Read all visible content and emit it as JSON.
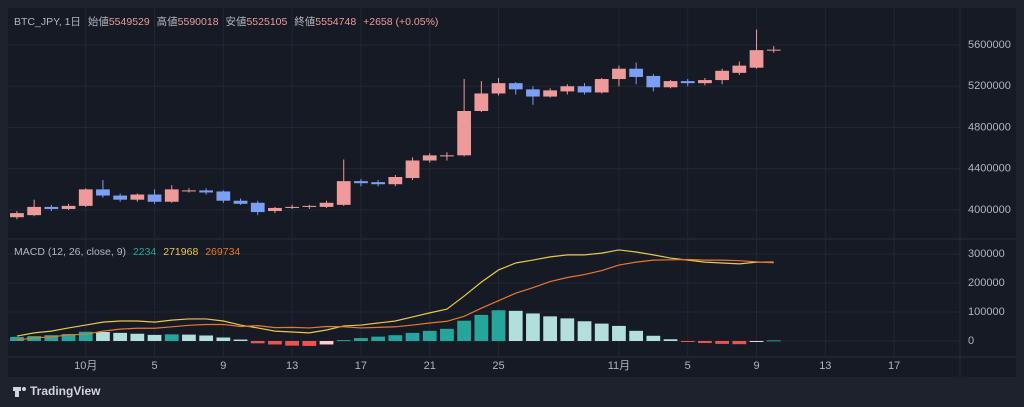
{
  "chart_data": [
    {
      "type": "candlestick",
      "title": "BTC_JPY, 1日",
      "header": {
        "open_label": "始値",
        "high_label": "高値",
        "low_label": "安値",
        "close_label": "終値",
        "change": "+2658 (+0.05%)"
      },
      "open": [
        3930000,
        3950000,
        4030000,
        4010000,
        4040000,
        4200000,
        4140000,
        4100000,
        4150000,
        4080000,
        4180000,
        4190000,
        4180000,
        4090000,
        4070000,
        3990000,
        4020000,
        4030000,
        4030000,
        4050000,
        4280000,
        4270000,
        4250000,
        4310000,
        4480000,
        4520000,
        4530000,
        4960000,
        5130000,
        5230000,
        5170000,
        5100000,
        5150000,
        5200000,
        5140000,
        5270000,
        5370000,
        5300000,
        5190000,
        5250000,
        5230000,
        5260000,
        5330000,
        5380000,
        5549529
      ],
      "high": [
        3990000,
        4100000,
        4050000,
        4060000,
        4210000,
        4290000,
        4160000,
        4160000,
        4200000,
        4240000,
        4210000,
        4210000,
        4190000,
        4110000,
        4090000,
        4030000,
        4050000,
        4050000,
        4090000,
        4490000,
        4300000,
        4290000,
        4340000,
        4510000,
        4550000,
        4560000,
        5270000,
        5250000,
        5280000,
        5240000,
        5200000,
        5180000,
        5220000,
        5230000,
        5280000,
        5400000,
        5430000,
        5320000,
        5260000,
        5270000,
        5280000,
        5370000,
        5440000,
        5750000,
        5590018
      ],
      "low": [
        3910000,
        3940000,
        3990000,
        4000000,
        4030000,
        4120000,
        4080000,
        4080000,
        4060000,
        4070000,
        4170000,
        4150000,
        4070000,
        4050000,
        3950000,
        3970000,
        4010000,
        4010000,
        4020000,
        4040000,
        4230000,
        4230000,
        4230000,
        4290000,
        4460000,
        4480000,
        4520000,
        4950000,
        5110000,
        5120000,
        5020000,
        5090000,
        5120000,
        5120000,
        5130000,
        5200000,
        5220000,
        5150000,
        5180000,
        5200000,
        5210000,
        5220000,
        5310000,
        5370000,
        5525105
      ],
      "close": [
        3970000,
        4030000,
        4010000,
        4040000,
        4200000,
        4140000,
        4100000,
        4150000,
        4080000,
        4200000,
        4190000,
        4170000,
        4090000,
        4060000,
        3980000,
        4020000,
        4030000,
        4040000,
        4070000,
        4280000,
        4260000,
        4250000,
        4320000,
        4480000,
        4530000,
        4530000,
        4960000,
        5130000,
        5230000,
        5170000,
        5100000,
        5160000,
        5200000,
        5140000,
        5270000,
        5370000,
        5290000,
        5190000,
        5250000,
        5230000,
        5260000,
        5350000,
        5400000,
        5550000,
        5554748
      ],
      "up_color": "#ef9a9a",
      "down_color": "#7d9ef5",
      "ylim": [
        3728500,
        5958800
      ],
      "yticks": [
        4000000,
        4400000,
        4800000,
        5200000,
        5600000
      ],
      "xlim": [
        -0.52,
        54.83
      ],
      "xticks": [
        {
          "value": 4,
          "label": "10月"
        },
        {
          "value": 8,
          "label": "5"
        },
        {
          "value": 12,
          "label": "9"
        },
        {
          "value": 16,
          "label": "13"
        },
        {
          "value": 20,
          "label": "17"
        },
        {
          "value": 24,
          "label": "21"
        },
        {
          "value": 28,
          "label": "25"
        },
        {
          "value": 35,
          "label": "11月"
        },
        {
          "value": 39,
          "label": "5"
        },
        {
          "value": 43,
          "label": "9"
        },
        {
          "value": 47,
          "label": "13"
        },
        {
          "value": 51,
          "label": "17"
        }
      ],
      "grid": true
    },
    {
      "type": "macd",
      "title": "MACD (12, 26, close, 9)",
      "histogram": [
        14000,
        17000,
        20000,
        24000,
        32000,
        31000,
        28000,
        25000,
        21000,
        23000,
        22000,
        19000,
        12000,
        5000,
        -8000,
        -12000,
        -16000,
        -17000,
        -12000,
        3000,
        10000,
        15000,
        20000,
        28000,
        35000,
        42000,
        70000,
        90000,
        106000,
        104000,
        95000,
        85000,
        78000,
        68000,
        60000,
        52000,
        35000,
        18000,
        6000,
        -2000,
        -7000,
        -10000,
        -11000,
        -1000,
        2234
      ],
      "macd": [
        17000,
        28000,
        34000,
        45000,
        55000,
        65000,
        69000,
        69000,
        65000,
        72000,
        76000,
        76000,
        69000,
        55000,
        45000,
        34000,
        31000,
        28000,
        38000,
        52000,
        55000,
        62000,
        69000,
        83000,
        97000,
        110000,
        155000,
        203000,
        245000,
        269000,
        279000,
        290000,
        297000,
        297000,
        303000,
        314000,
        307000,
        297000,
        286000,
        279000,
        272000,
        269000,
        266000,
        272000,
        271968
      ],
      "signal": [
        3000,
        11000,
        14000,
        21000,
        23000,
        34000,
        41000,
        44000,
        44000,
        49000,
        54000,
        57000,
        57000,
        50000,
        53000,
        46000,
        47000,
        45000,
        50000,
        49000,
        45000,
        47000,
        49000,
        55000,
        62000,
        68000,
        85000,
        113000,
        139000,
        165000,
        184000,
        205000,
        219000,
        229000,
        243000,
        262000,
        272000,
        279000,
        280000,
        281000,
        279000,
        279000,
        277000,
        273000,
        269734
      ],
      "hist_colors": {
        "grow_above": "#26a69a",
        "fall_above": "#b2dfdb",
        "grow_below": "#ffcdd2",
        "fall_below": "#ef5350"
      },
      "macd_color": "#e9c84a",
      "signal_color": "#e8772e",
      "ylim": [
        -55200,
        348300
      ],
      "yticks": [
        0,
        100000,
        200000,
        300000
      ],
      "grid": true
    }
  ],
  "branding": "TradingView"
}
